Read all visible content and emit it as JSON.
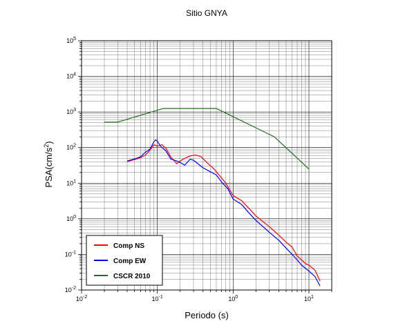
{
  "chart_data": {
    "type": "line",
    "title": "Sitio GNYA",
    "xlabel": "Periodo (s)",
    "ylabel_base": "PSA(cm/s",
    "ylabel_sup": "2",
    "ylabel_end": ")",
    "x_scale": "log",
    "y_scale": "log",
    "xlim": [
      0.01,
      20
    ],
    "ylim": [
      0.01,
      100000
    ],
    "grid": true,
    "legend_position": "bottom-left",
    "x_ticks": [
      {
        "value": 0.01,
        "base": "10",
        "exp": "-2"
      },
      {
        "value": 0.1,
        "base": "10",
        "exp": "-1"
      },
      {
        "value": 1,
        "base": "10",
        "exp": "0"
      },
      {
        "value": 10,
        "base": "10",
        "exp": "1"
      }
    ],
    "y_ticks": [
      {
        "value": 0.01,
        "base": "10",
        "exp": "-2"
      },
      {
        "value": 0.1,
        "base": "10",
        "exp": "-1"
      },
      {
        "value": 1,
        "base": "10",
        "exp": "0"
      },
      {
        "value": 10,
        "base": "10",
        "exp": "1"
      },
      {
        "value": 100,
        "base": "10",
        "exp": "2"
      },
      {
        "value": 1000,
        "base": "10",
        "exp": "3"
      },
      {
        "value": 10000,
        "base": "10",
        "exp": "4"
      },
      {
        "value": 100000,
        "base": "10",
        "exp": "5"
      }
    ],
    "series": [
      {
        "name": "Comp NS",
        "color": "#ff0000",
        "points": [
          [
            0.04,
            40
          ],
          [
            0.05,
            46
          ],
          [
            0.06,
            52
          ],
          [
            0.07,
            62
          ],
          [
            0.08,
            85
          ],
          [
            0.09,
            120
          ],
          [
            0.1,
            110
          ],
          [
            0.115,
            120
          ],
          [
            0.13,
            95
          ],
          [
            0.15,
            55
          ],
          [
            0.18,
            35
          ],
          [
            0.2,
            42
          ],
          [
            0.23,
            50
          ],
          [
            0.27,
            58
          ],
          [
            0.32,
            62
          ],
          [
            0.38,
            55
          ],
          [
            0.45,
            38
          ],
          [
            0.55,
            26
          ],
          [
            0.65,
            17
          ],
          [
            0.8,
            10
          ],
          [
            1.0,
            4.5
          ],
          [
            1.3,
            3.2
          ],
          [
            1.6,
            2.0
          ],
          [
            2.0,
            1.2
          ],
          [
            3.0,
            0.6
          ],
          [
            4.0,
            0.35
          ],
          [
            5.0,
            0.22
          ],
          [
            6.0,
            0.16
          ],
          [
            7.0,
            0.09
          ],
          [
            8.0,
            0.07
          ],
          [
            9.0,
            0.055
          ],
          [
            10.0,
            0.05
          ],
          [
            11.0,
            0.042
          ],
          [
            12.0,
            0.036
          ],
          [
            14.0,
            0.018
          ]
        ]
      },
      {
        "name": "Comp EW",
        "color": "#0000ff",
        "points": [
          [
            0.04,
            42
          ],
          [
            0.05,
            48
          ],
          [
            0.06,
            55
          ],
          [
            0.07,
            75
          ],
          [
            0.08,
            90
          ],
          [
            0.09,
            145
          ],
          [
            0.095,
            165
          ],
          [
            0.1,
            150
          ],
          [
            0.11,
            110
          ],
          [
            0.13,
            80
          ],
          [
            0.15,
            48
          ],
          [
            0.18,
            42
          ],
          [
            0.2,
            38
          ],
          [
            0.23,
            32
          ],
          [
            0.27,
            47
          ],
          [
            0.3,
            44
          ],
          [
            0.35,
            34
          ],
          [
            0.4,
            27
          ],
          [
            0.5,
            21
          ],
          [
            0.6,
            17
          ],
          [
            0.7,
            11
          ],
          [
            0.85,
            7
          ],
          [
            1.0,
            3.6
          ],
          [
            1.3,
            2.5
          ],
          [
            1.6,
            1.5
          ],
          [
            2.0,
            0.9
          ],
          [
            3.0,
            0.42
          ],
          [
            4.0,
            0.25
          ],
          [
            5.0,
            0.15
          ],
          [
            6.0,
            0.1
          ],
          [
            7.0,
            0.07
          ],
          [
            8.0,
            0.05
          ],
          [
            10.0,
            0.034
          ],
          [
            12.0,
            0.024
          ],
          [
            14.0,
            0.013
          ]
        ]
      },
      {
        "name": "CSCR 2010",
        "color": "#1f6e1f",
        "points": [
          [
            0.02,
            520
          ],
          [
            0.03,
            520
          ],
          [
            0.12,
            1250
          ],
          [
            0.6,
            1250
          ],
          [
            3.5,
            200
          ],
          [
            10.0,
            25
          ]
        ]
      }
    ]
  }
}
